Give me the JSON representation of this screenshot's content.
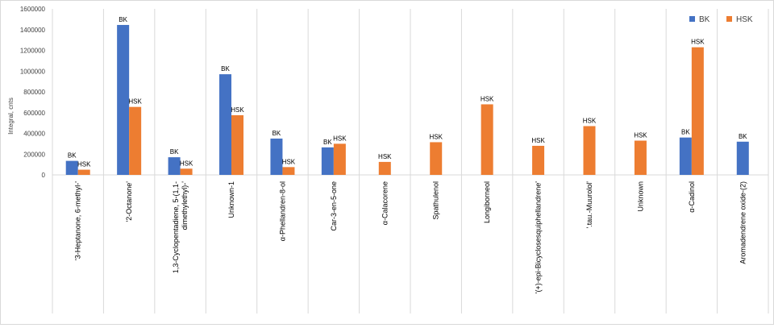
{
  "chart_data": {
    "type": "bar",
    "ylabel": "Integral, cnts",
    "ylim": [
      0,
      1600000
    ],
    "yticks": [
      0,
      200000,
      400000,
      600000,
      800000,
      1000000,
      1200000,
      1400000,
      1600000
    ],
    "ytick_labels": [
      "0",
      "200000",
      "400000",
      "600000",
      "800000",
      "1000000",
      "1200000",
      "1400000",
      "1600000"
    ],
    "gridlines": "vertical",
    "legend_position": "top-right",
    "categories": [
      "'3-Heptanone, 6-methyl-'",
      "'2-Octanone'",
      "1,3-Cyclopentadiene, 5-(1,1-dimethylethyl)-'",
      "Unknown-1",
      "α-Phellandren-8-ol",
      "Car-3-en-5-one",
      "α-Calacorene",
      "Spathulenol",
      "Longiborneol",
      "'(+)-epi-Bicyclosesquiphellandrene'",
      "'.tau.-Muurolol'",
      "Unknown",
      "α-Cadinol",
      "Aromadendrene oxide-(2)"
    ],
    "category_lines": [
      [
        "'3-Heptanone, 6-methyl-'"
      ],
      [
        "'2-Octanone'"
      ],
      [
        "1,3-Cyclopentadiene, 5-(1,1-",
        "dimethylethyl)-'"
      ],
      [
        "Unknown-1"
      ],
      [
        "α-Phellandren-8-ol"
      ],
      [
        "Car-3-en-5-one"
      ],
      [
        "α-Calacorene"
      ],
      [
        "Spathulenol"
      ],
      [
        "Longiborneol"
      ],
      [
        "'(+)-epi-Bicyclosesquiphellandrene'"
      ],
      [
        "'.tau.-Muurolol'"
      ],
      [
        "Unknown"
      ],
      [
        "α-Cadinol"
      ],
      [
        "Aromadendrene oxide-(2)"
      ]
    ],
    "series": [
      {
        "name": "BK",
        "color": "#4472C4",
        "values": [
          135000,
          1445000,
          170000,
          970000,
          350000,
          265000,
          null,
          null,
          null,
          null,
          null,
          null,
          360000,
          320000
        ]
      },
      {
        "name": "HSK",
        "color": "#ED7D31",
        "values": [
          50000,
          655000,
          60000,
          575000,
          75000,
          300000,
          125000,
          315000,
          680000,
          280000,
          470000,
          330000,
          1230000,
          null
        ]
      }
    ]
  }
}
